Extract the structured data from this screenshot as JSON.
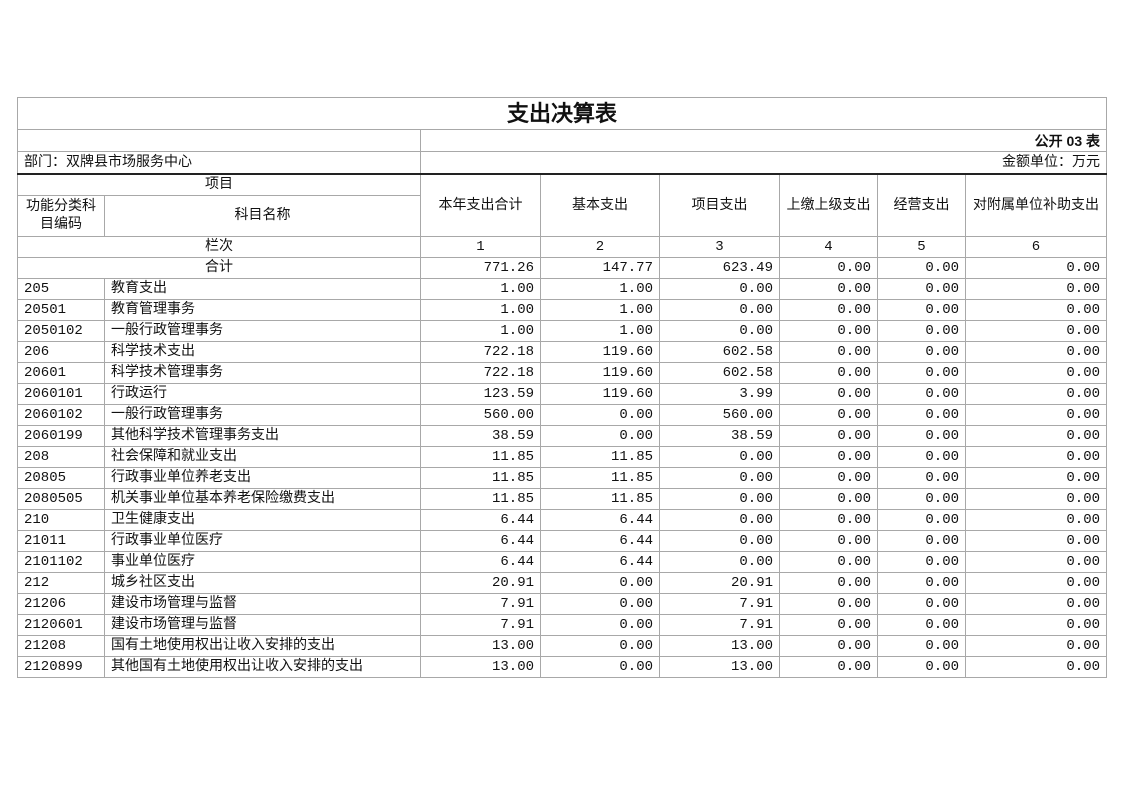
{
  "title": "支出决算表",
  "form_no": "公开 03 表",
  "department": "部门：双牌县市场服务中心",
  "unit": "金额单位：万元",
  "headers": {
    "item": "项目",
    "code": "功能分类科目编码",
    "name": "科目名称",
    "cols": [
      "本年支出合计",
      "基本支出",
      "项目支出",
      "上缴上级支出",
      "经营支出",
      "对附属单位补助支出"
    ],
    "row_index_label": "栏次",
    "row_index": [
      "1",
      "2",
      "3",
      "4",
      "5",
      "6"
    ]
  },
  "total": {
    "label": "合计",
    "values": [
      "771.26",
      "147.77",
      "623.49",
      "0.00",
      "0.00",
      "0.00"
    ]
  },
  "rows": [
    {
      "code": "205",
      "name": "教育支出",
      "values": [
        "1.00",
        "1.00",
        "0.00",
        "0.00",
        "0.00",
        "0.00"
      ]
    },
    {
      "code": "20501",
      "name": "教育管理事务",
      "values": [
        "1.00",
        "1.00",
        "0.00",
        "0.00",
        "0.00",
        "0.00"
      ]
    },
    {
      "code": "2050102",
      "name": "一般行政管理事务",
      "values": [
        "1.00",
        "1.00",
        "0.00",
        "0.00",
        "0.00",
        "0.00"
      ]
    },
    {
      "code": "206",
      "name": "科学技术支出",
      "values": [
        "722.18",
        "119.60",
        "602.58",
        "0.00",
        "0.00",
        "0.00"
      ]
    },
    {
      "code": "20601",
      "name": "科学技术管理事务",
      "values": [
        "722.18",
        "119.60",
        "602.58",
        "0.00",
        "0.00",
        "0.00"
      ]
    },
    {
      "code": "2060101",
      "name": "行政运行",
      "values": [
        "123.59",
        "119.60",
        "3.99",
        "0.00",
        "0.00",
        "0.00"
      ]
    },
    {
      "code": "2060102",
      "name": "一般行政管理事务",
      "values": [
        "560.00",
        "0.00",
        "560.00",
        "0.00",
        "0.00",
        "0.00"
      ]
    },
    {
      "code": "2060199",
      "name": "其他科学技术管理事务支出",
      "values": [
        "38.59",
        "0.00",
        "38.59",
        "0.00",
        "0.00",
        "0.00"
      ]
    },
    {
      "code": "208",
      "name": "社会保障和就业支出",
      "values": [
        "11.85",
        "11.85",
        "0.00",
        "0.00",
        "0.00",
        "0.00"
      ]
    },
    {
      "code": "20805",
      "name": "行政事业单位养老支出",
      "values": [
        "11.85",
        "11.85",
        "0.00",
        "0.00",
        "0.00",
        "0.00"
      ]
    },
    {
      "code": "2080505",
      "name": "机关事业单位基本养老保险缴费支出",
      "values": [
        "11.85",
        "11.85",
        "0.00",
        "0.00",
        "0.00",
        "0.00"
      ]
    },
    {
      "code": "210",
      "name": "卫生健康支出",
      "values": [
        "6.44",
        "6.44",
        "0.00",
        "0.00",
        "0.00",
        "0.00"
      ]
    },
    {
      "code": "21011",
      "name": "行政事业单位医疗",
      "values": [
        "6.44",
        "6.44",
        "0.00",
        "0.00",
        "0.00",
        "0.00"
      ]
    },
    {
      "code": "2101102",
      "name": "事业单位医疗",
      "values": [
        "6.44",
        "6.44",
        "0.00",
        "0.00",
        "0.00",
        "0.00"
      ]
    },
    {
      "code": "212",
      "name": "城乡社区支出",
      "values": [
        "20.91",
        "0.00",
        "20.91",
        "0.00",
        "0.00",
        "0.00"
      ]
    },
    {
      "code": "21206",
      "name": "建设市场管理与监督",
      "values": [
        "7.91",
        "0.00",
        "7.91",
        "0.00",
        "0.00",
        "0.00"
      ]
    },
    {
      "code": "2120601",
      "name": "建设市场管理与监督",
      "values": [
        "7.91",
        "0.00",
        "7.91",
        "0.00",
        "0.00",
        "0.00"
      ]
    },
    {
      "code": "21208",
      "name": "国有土地使用权出让收入安排的支出",
      "values": [
        "13.00",
        "0.00",
        "13.00",
        "0.00",
        "0.00",
        "0.00"
      ]
    },
    {
      "code": "2120899",
      "name": "其他国有土地使用权出让收入安排的支出",
      "values": [
        "13.00",
        "0.00",
        "13.00",
        "0.00",
        "0.00",
        "0.00"
      ]
    }
  ]
}
